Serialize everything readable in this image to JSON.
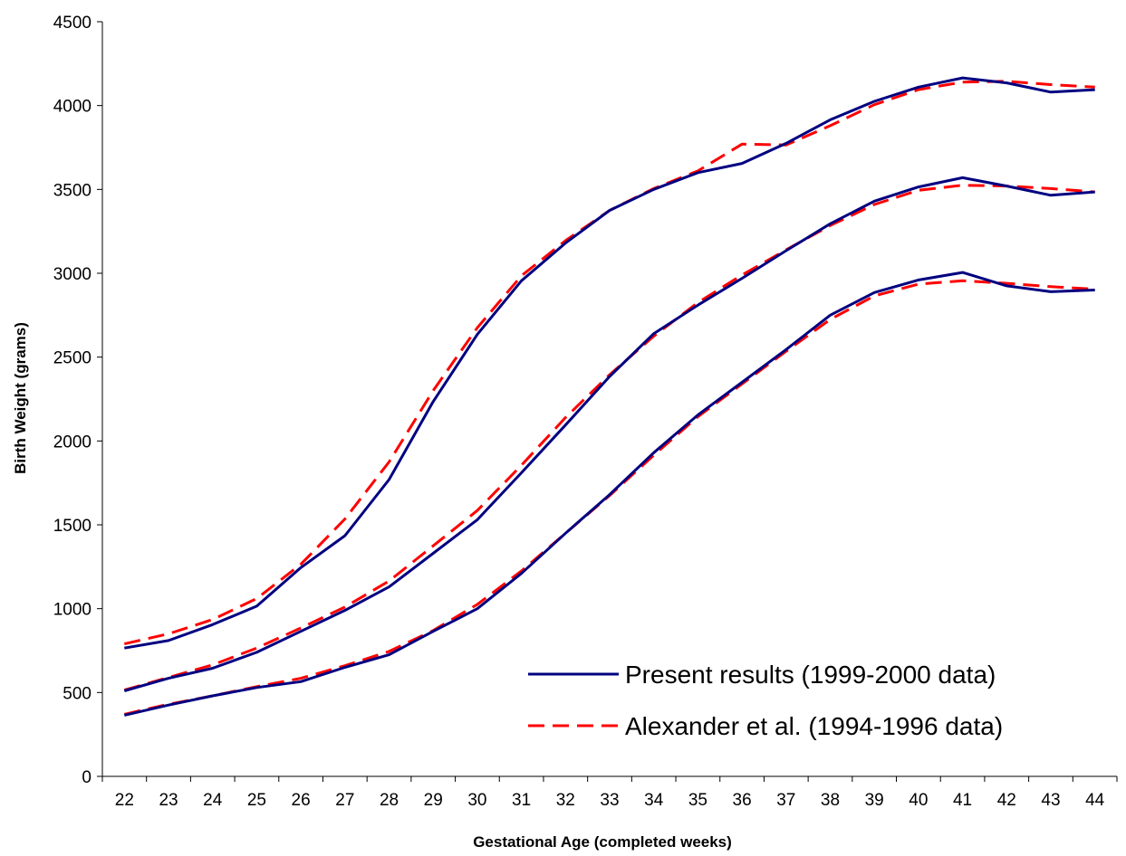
{
  "chart_data": {
    "type": "line",
    "title": "",
    "xlabel": "Gestational Age (completed weeks)",
    "ylabel": "Birth Weight (grams)",
    "categories": [
      "22",
      "23",
      "24",
      "25",
      "26",
      "27",
      "28",
      "29",
      "30",
      "31",
      "32",
      "33",
      "34",
      "35",
      "36",
      "37",
      "38",
      "39",
      "40",
      "41",
      "42",
      "43",
      "44"
    ],
    "ylim": [
      0,
      4500
    ],
    "yticks": [
      0,
      500,
      1000,
      1500,
      2000,
      2500,
      3000,
      3500,
      4000,
      4500
    ],
    "grid": false,
    "legend_position": "bottom-right",
    "legend": [
      {
        "label": "Present results (1999-2000 data)",
        "color": "#000080",
        "dash": "solid"
      },
      {
        "label": "Alexander et al. (1994-1996 data)",
        "color": "#ff0000",
        "dash": "dashed"
      }
    ],
    "series": [
      {
        "group": "Present results (1999-2000 data)",
        "color": "#000080",
        "dash": "solid",
        "values": [
          765,
          810,
          905,
          1015,
          1245,
          1435,
          1770,
          2235,
          2635,
          2955,
          3180,
          3375,
          3500,
          3600,
          3655,
          3775,
          3915,
          4025,
          4110,
          4165,
          4135,
          4080,
          4095
        ]
      },
      {
        "group": "Alexander et al. (1994-1996 data)",
        "color": "#ff0000",
        "dash": "dashed",
        "values": [
          790,
          850,
          935,
          1060,
          1265,
          1535,
          1875,
          2300,
          2675,
          2985,
          3195,
          3375,
          3505,
          3610,
          3770,
          3765,
          3880,
          4005,
          4095,
          4140,
          4145,
          4125,
          4110
        ]
      },
      {
        "group": "Present results (1999-2000 data)",
        "color": "#000080",
        "dash": "solid",
        "values": [
          510,
          585,
          645,
          740,
          865,
          990,
          1130,
          1330,
          1530,
          1810,
          2095,
          2385,
          2640,
          2810,
          2970,
          3135,
          3295,
          3430,
          3515,
          3570,
          3520,
          3465,
          3485
        ]
      },
      {
        "group": "Alexander et al. (1994-1996 data)",
        "color": "#ff0000",
        "dash": "dashed",
        "values": [
          515,
          590,
          665,
          765,
          885,
          1010,
          1165,
          1375,
          1585,
          1855,
          2140,
          2395,
          2625,
          2825,
          2990,
          3140,
          3285,
          3410,
          3495,
          3525,
          3520,
          3505,
          3485
        ]
      },
      {
        "group": "Present results (1999-2000 data)",
        "color": "#000080",
        "dash": "solid",
        "values": [
          365,
          425,
          480,
          530,
          565,
          650,
          725,
          865,
          1000,
          1210,
          1450,
          1680,
          1930,
          2155,
          2350,
          2545,
          2750,
          2885,
          2960,
          3005,
          2925,
          2890,
          2900
        ]
      },
      {
        "group": "Alexander et al. (1994-1996 data)",
        "color": "#ff0000",
        "dash": "dashed",
        "values": [
          370,
          430,
          480,
          535,
          585,
          660,
          745,
          870,
          1025,
          1225,
          1450,
          1675,
          1915,
          2145,
          2340,
          2535,
          2725,
          2865,
          2935,
          2955,
          2940,
          2920,
          2905
        ]
      }
    ]
  }
}
